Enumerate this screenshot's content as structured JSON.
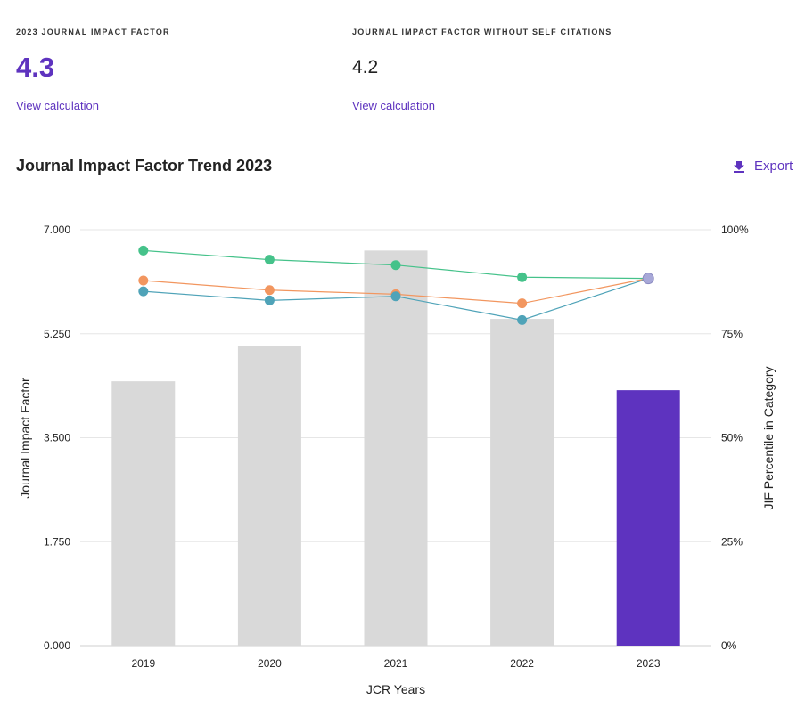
{
  "metrics": {
    "jif": {
      "label": "2023 JOURNAL IMPACT FACTOR",
      "value": "4.3",
      "link": "View calculation"
    },
    "jif_no_self": {
      "label": "JOURNAL IMPACT FACTOR WITHOUT SELF CITATIONS",
      "value": "4.2",
      "link": "View calculation"
    }
  },
  "section": {
    "title": "Journal Impact Factor Trend 2023",
    "export_label": "Export"
  },
  "colors": {
    "accent": "#5e33bf",
    "bar_default": "#d9d9d9",
    "bar_highlight": "#5e33bf",
    "line_green": "#45c28a",
    "line_orange": "#f2965f",
    "line_teal": "#4fa3b8",
    "final_point": "#a8a8d8"
  },
  "chart_data": {
    "type": "bar",
    "categories": [
      "2019",
      "2020",
      "2021",
      "2022",
      "2023"
    ],
    "values": [
      4.45,
      5.05,
      6.65,
      5.5,
      4.3
    ],
    "highlight_index": 4,
    "xlabel": "JCR Years",
    "ylabel": "Journal Impact Factor",
    "y2label": "JIF Percentile in Category",
    "ylim": [
      0,
      7
    ],
    "y_ticks": [
      "0.000",
      "1.750",
      "3.500",
      "5.250",
      "7.000"
    ],
    "y2lim": [
      0,
      100
    ],
    "y2_ticks": [
      "0%",
      "25%",
      "50%",
      "75%",
      "100%"
    ],
    "grid": true,
    "line_series": [
      {
        "color_key": "line_green",
        "values": [
          95.0,
          92.8,
          91.5,
          88.6,
          88.3
        ]
      },
      {
        "color_key": "line_orange",
        "values": [
          87.8,
          85.5,
          84.5,
          82.3,
          88.3
        ]
      },
      {
        "color_key": "line_teal",
        "values": [
          85.2,
          83.0,
          84.0,
          78.3,
          88.3
        ]
      }
    ]
  }
}
